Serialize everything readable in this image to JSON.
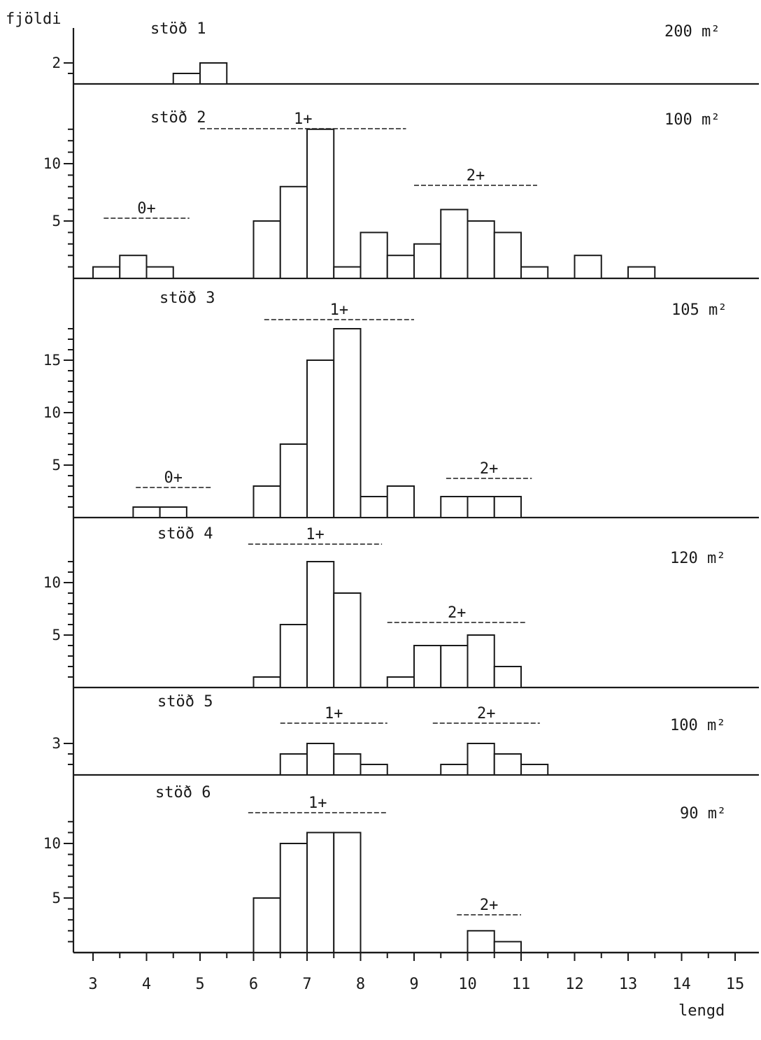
{
  "chart_data": {
    "type": "bar",
    "ylabel": "fjöldi",
    "xlabel": "lengd",
    "x_ticks": [
      3,
      4,
      5,
      6,
      7,
      8,
      9,
      10,
      11,
      12,
      13,
      14,
      15
    ],
    "x_range": [
      3,
      15.5
    ],
    "bin_width": 0.5,
    "panels": [
      {
        "name": "stöð 1",
        "area": "200 m²",
        "ylim": [
          0,
          2.2
        ],
        "y_ticks": [
          2
        ],
        "bars": [
          {
            "x": 4.75,
            "y": 1
          },
          {
            "x": 5.25,
            "y": 2
          }
        ],
        "cohorts": []
      },
      {
        "name": "stöð 2",
        "area": "100 m²",
        "ylim": [
          0,
          13
        ],
        "y_ticks": [
          5,
          10
        ],
        "bars": [
          {
            "x": 3.25,
            "y": 1
          },
          {
            "x": 3.75,
            "y": 2
          },
          {
            "x": 4.25,
            "y": 1
          },
          {
            "x": 6.25,
            "y": 5
          },
          {
            "x": 6.75,
            "y": 8
          },
          {
            "x": 7.25,
            "y": 13
          },
          {
            "x": 7.75,
            "y": 1
          },
          {
            "x": 8.25,
            "y": 4
          },
          {
            "x": 8.75,
            "y": 2
          },
          {
            "x": 9.25,
            "y": 3
          },
          {
            "x": 9.75,
            "y": 6
          },
          {
            "x": 10.25,
            "y": 5
          },
          {
            "x": 10.75,
            "y": 4
          },
          {
            "x": 11.25,
            "y": 1
          },
          {
            "x": 12.25,
            "y": 2
          },
          {
            "x": 13.25,
            "y": 1
          }
        ],
        "cohorts": [
          {
            "label": "0+",
            "from": 3.2,
            "to": 4.8
          },
          {
            "label": "1+",
            "from": 5.0,
            "to": 8.85
          },
          {
            "label": "2+",
            "from": 9.0,
            "to": 11.3
          }
        ]
      },
      {
        "name": "stöð 3",
        "area": "105 m²",
        "ylim": [
          0,
          18
        ],
        "y_ticks": [
          5,
          10,
          15
        ],
        "bars": [
          {
            "x": 4.0,
            "y": 1
          },
          {
            "x": 4.5,
            "y": 1
          },
          {
            "x": 6.25,
            "y": 3
          },
          {
            "x": 6.75,
            "y": 7
          },
          {
            "x": 7.25,
            "y": 15
          },
          {
            "x": 7.75,
            "y": 18
          },
          {
            "x": 8.25,
            "y": 2
          },
          {
            "x": 8.75,
            "y": 3
          },
          {
            "x": 9.75,
            "y": 2
          },
          {
            "x": 10.25,
            "y": 2
          },
          {
            "x": 10.75,
            "y": 2
          }
        ],
        "cohorts": [
          {
            "label": "0+",
            "from": 3.8,
            "to": 5.2
          },
          {
            "label": "1+",
            "from": 6.2,
            "to": 9.0
          },
          {
            "label": "2+",
            "from": 9.6,
            "to": 11.2
          }
        ]
      },
      {
        "name": "stöð 4",
        "area": "120 m²",
        "ylim": [
          0,
          12
        ],
        "y_ticks": [
          5,
          10
        ],
        "bars": [
          {
            "x": 6.25,
            "y": 1
          },
          {
            "x": 6.75,
            "y": 6
          },
          {
            "x": 7.25,
            "y": 12
          },
          {
            "x": 7.75,
            "y": 9
          },
          {
            "x": 8.75,
            "y": 1
          },
          {
            "x": 9.25,
            "y": 4
          },
          {
            "x": 9.75,
            "y": 4
          },
          {
            "x": 10.25,
            "y": 5
          },
          {
            "x": 10.75,
            "y": 2
          }
        ],
        "cohorts": [
          {
            "label": "1+",
            "from": 5.9,
            "to": 8.4
          },
          {
            "label": "2+",
            "from": 8.5,
            "to": 11.1
          }
        ]
      },
      {
        "name": "stöð 5",
        "area": "100 m²",
        "ylim": [
          0,
          3.3
        ],
        "y_ticks": [
          3
        ],
        "bars": [
          {
            "x": 6.75,
            "y": 2
          },
          {
            "x": 7.25,
            "y": 3
          },
          {
            "x": 7.75,
            "y": 2
          },
          {
            "x": 8.25,
            "y": 1
          },
          {
            "x": 9.75,
            "y": 1
          },
          {
            "x": 10.25,
            "y": 3
          },
          {
            "x": 10.75,
            "y": 2
          },
          {
            "x": 11.25,
            "y": 1
          }
        ],
        "cohorts": [
          {
            "label": "1+",
            "from": 6.5,
            "to": 8.5
          },
          {
            "label": "2+",
            "from": 9.35,
            "to": 11.35
          }
        ]
      },
      {
        "name": "stöð 6",
        "area": "90 m²",
        "ylim": [
          0,
          12
        ],
        "y_ticks": [
          5,
          10
        ],
        "bars": [
          {
            "x": 6.25,
            "y": 5
          },
          {
            "x": 6.75,
            "y": 10
          },
          {
            "x": 7.25,
            "y": 11
          },
          {
            "x": 7.75,
            "y": 11
          },
          {
            "x": 10.25,
            "y": 2
          },
          {
            "x": 10.75,
            "y": 1
          }
        ],
        "cohorts": [
          {
            "label": "1+",
            "from": 5.9,
            "to": 8.5
          },
          {
            "label": "2+",
            "from": 9.8,
            "to": 11.0
          }
        ]
      }
    ]
  }
}
